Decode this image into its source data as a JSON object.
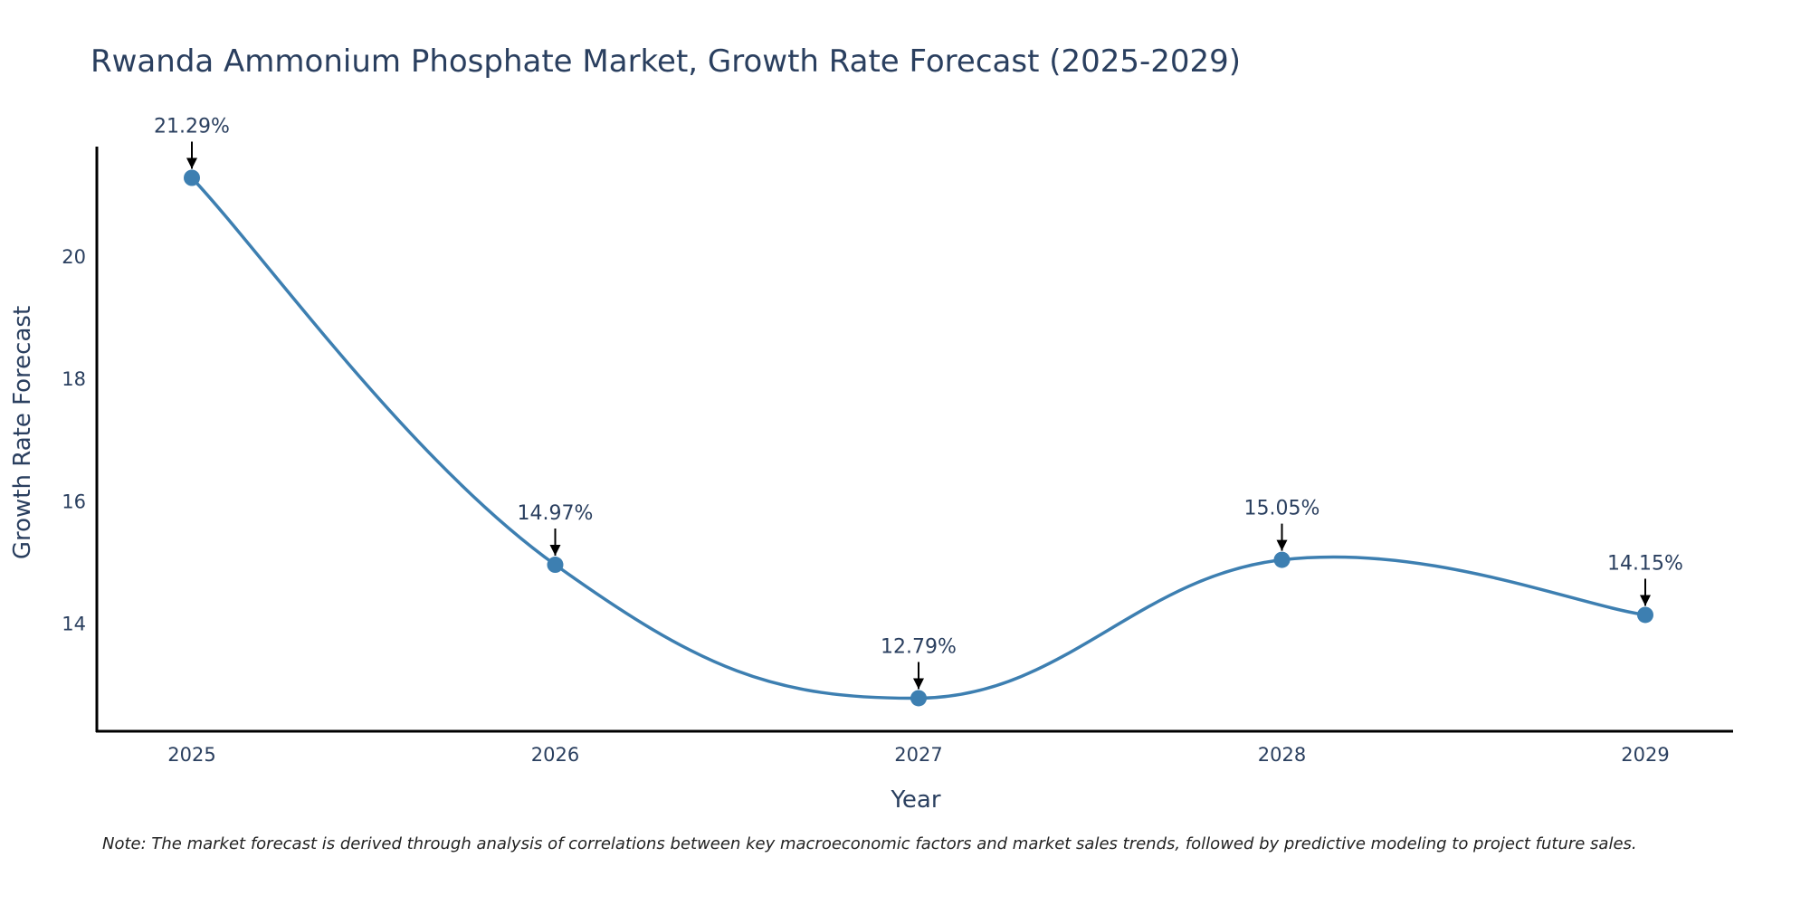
{
  "chart_data": {
    "type": "line",
    "title": "Rwanda Ammonium Phosphate Market, Growth Rate Forecast (2025-2029)",
    "xlabel": "Year",
    "ylabel": "Growth Rate Forecast",
    "categories": [
      "2025",
      "2026",
      "2027",
      "2028",
      "2029"
    ],
    "values": [
      21.29,
      14.97,
      12.79,
      15.05,
      14.15
    ],
    "data_labels": [
      "21.29%",
      "14.97%",
      "12.79%",
      "15.05%",
      "14.15%"
    ],
    "y_ticks": [
      14,
      16,
      18,
      20
    ],
    "y_tick_labels": [
      "14",
      "16",
      "18",
      "20"
    ],
    "ylim": [
      12.25,
      21.8
    ],
    "line_shape": "spline",
    "grid": false,
    "legend": "none",
    "note": "Note: The market forecast is derived through analysis of correlations between key macroeconomic factors and market sales trends, followed by predictive modeling to project future sales.",
    "colors": {
      "series": "#3d7fb1",
      "axis": "#000000",
      "text": "#2a3f5f",
      "arrow": "#000000"
    }
  }
}
